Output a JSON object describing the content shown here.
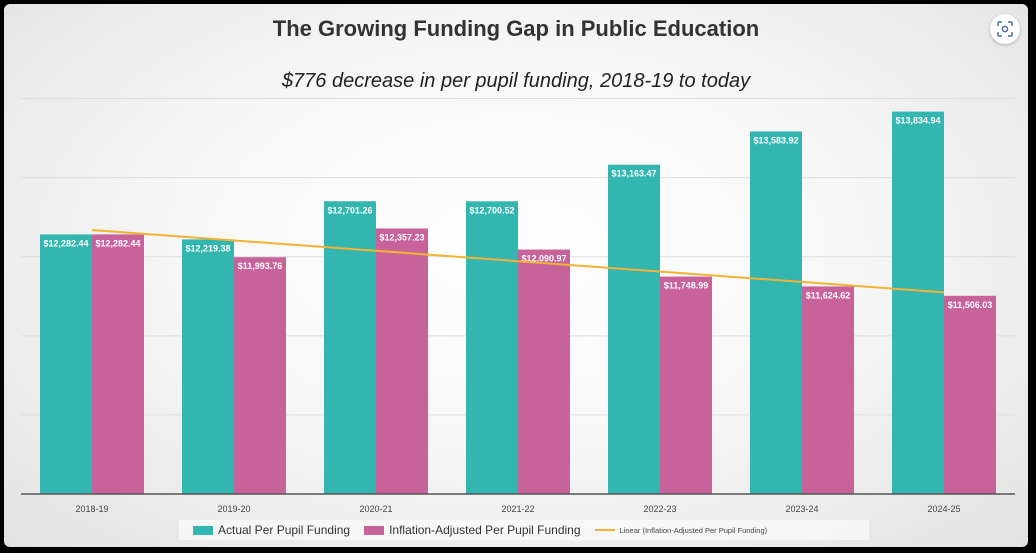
{
  "title": "The Growing Funding Gap in Public Education",
  "subtitle": "$776 decrease in per pupil funding, 2018-19 to today",
  "icons": {
    "lens": "lens-icon"
  },
  "colors": {
    "actual": "#33B5B0",
    "inflation": "#C8629A",
    "trend": "#F2B233"
  },
  "legend": {
    "actual": "Actual Per Pupil Funding",
    "inflation": "Inflation-Adjusted Per Pupil Funding",
    "trend": "Linear (Inflation-Adjusted Per Pupil Funding)"
  },
  "chart_data": {
    "type": "bar",
    "title": "The Growing Funding Gap in Public Education",
    "subtitle": "$776 decrease in per pupil funding, 2018-19 to today",
    "categories": [
      "2018-19",
      "2019-20",
      "2020-21",
      "2021-22",
      "2022-23",
      "2023-24",
      "2024-25"
    ],
    "series": [
      {
        "name": "Actual Per Pupil Funding",
        "values": [
          12282.44,
          12219.38,
          12701.26,
          12700.52,
          13163.47,
          13583.92,
          13834.94
        ],
        "labels": [
          "$12,282.44",
          "$12,219.38",
          "$12,701.26",
          "$12,700.52",
          "$13,163.47",
          "$13,583.92",
          "$13,834.94"
        ]
      },
      {
        "name": "Inflation-Adjusted Per Pupil Funding",
        "values": [
          12282.44,
          11993.76,
          12357.23,
          12090.97,
          11748.99,
          11624.62,
          11506.03
        ],
        "labels": [
          "$12,282.44",
          "$11,993.76",
          "$12,357.23",
          "$12,090.97",
          "$11,748.99",
          "$11,624.62",
          "$11,506.03"
        ]
      }
    ],
    "trendline": {
      "name": "Linear (Inflation-Adjusted Per Pupil Funding)",
      "of_series": 1,
      "type": "linear"
    },
    "ylim": [
      9000,
      14500
    ],
    "grid": true,
    "legend_position": "bottom"
  }
}
